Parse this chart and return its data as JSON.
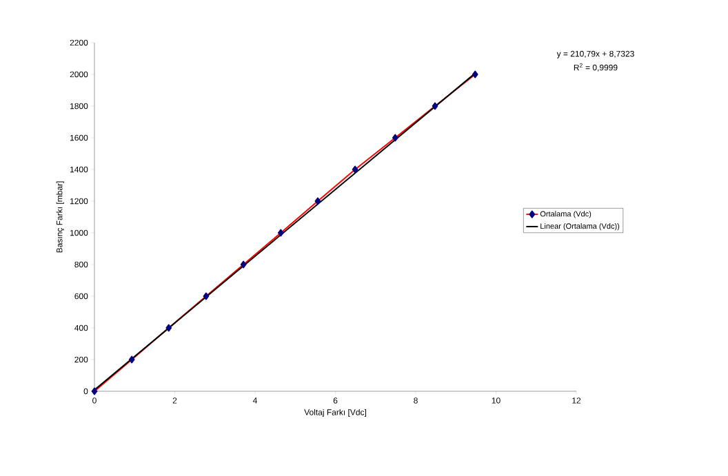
{
  "chart_data": {
    "type": "line",
    "xlabel": "Voltaj Farkı [Vdc]",
    "ylabel": "Basınç Farkı [mbar]",
    "xlim": [
      0,
      12
    ],
    "xticks": [
      0,
      2,
      4,
      6,
      8,
      10,
      12
    ],
    "ylim": [
      0,
      2200
    ],
    "yticks": [
      0,
      200,
      400,
      600,
      800,
      1000,
      1200,
      1400,
      1600,
      1800,
      2000,
      2200
    ],
    "grid": false,
    "legend": "right",
    "annotations": [
      "y = 210,79x + 8,7323",
      "R$^{2}$ = 0,9999"
    ],
    "series": [
      {
        "name": "Ortalama (Vdc)",
        "color": "#ff0000",
        "marker": "diamond",
        "x": [
          0,
          0.93,
          1.85,
          2.78,
          3.71,
          4.64,
          5.56,
          6.49,
          7.49,
          8.48,
          9.48
        ],
        "values": [
          0,
          200,
          400,
          600,
          800,
          1000,
          1200,
          1400,
          1600,
          1800,
          2000
        ]
      },
      {
        "name": "Linear (Ortalama (Vdc))",
        "color": "#000000",
        "marker": "none",
        "x": [
          0,
          9.48
        ],
        "values": [
          9,
          2007
        ]
      }
    ]
  }
}
